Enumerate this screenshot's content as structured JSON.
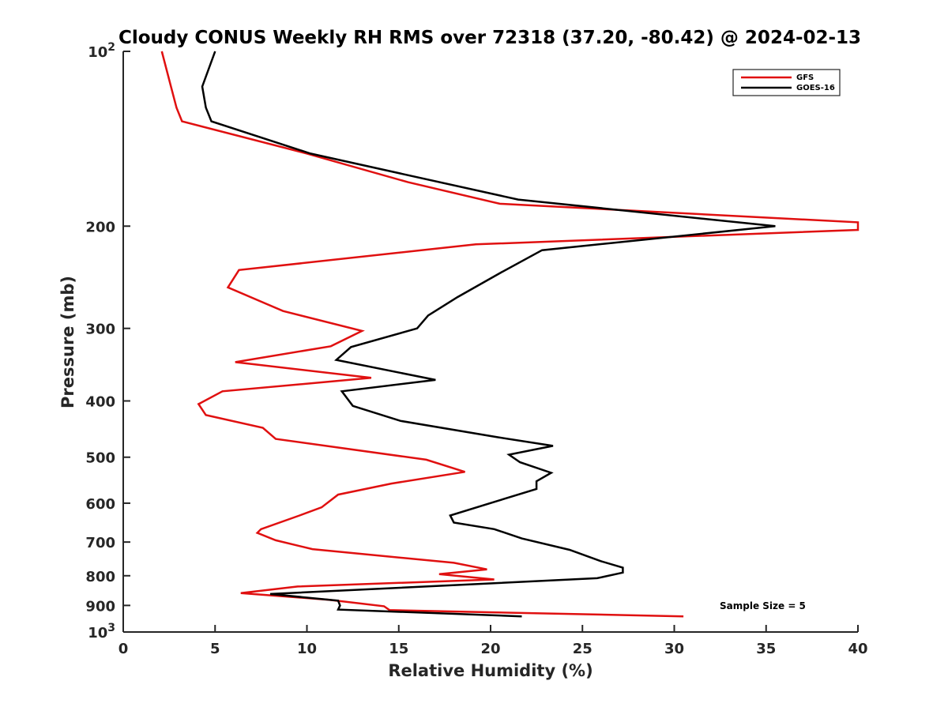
{
  "chart_data": {
    "type": "line",
    "title": "Cloudy CONUS Weekly RH RMS over 72318 (37.20, -80.42) @ 2024-02-13",
    "xlabel": "Relative Humidity (%)",
    "ylabel": "Pressure (mb)",
    "xlim": [
      0,
      40
    ],
    "ylim": [
      100,
      1000
    ],
    "yscale": "log",
    "y_reversed": true,
    "x_ticks": [
      "0",
      "5",
      "10",
      "15",
      "20",
      "25",
      "30",
      "35",
      "40"
    ],
    "y_ticks": [
      {
        "value": 100,
        "base": "10",
        "exp": "2"
      },
      {
        "value": 200,
        "label": "200"
      },
      {
        "value": 300,
        "label": "300"
      },
      {
        "value": 400,
        "label": "400"
      },
      {
        "value": 500,
        "label": "500"
      },
      {
        "value": 600,
        "label": "600"
      },
      {
        "value": 700,
        "label": "700"
      },
      {
        "value": 800,
        "label": "800"
      },
      {
        "value": 900,
        "label": "900"
      },
      {
        "value": 1000,
        "base": "10",
        "exp": "3"
      }
    ],
    "legend_position": "top-right",
    "annotation": "Sample Size = 5",
    "series": [
      {
        "name": "GFS",
        "color": "#e01010",
        "points": [
          [
            2.1,
            100
          ],
          [
            2.6,
            115
          ],
          [
            2.9,
            125
          ],
          [
            3.2,
            132
          ],
          [
            10.0,
            150
          ],
          [
            15.5,
            168
          ],
          [
            20.5,
            183
          ],
          [
            40.0,
            197
          ],
          [
            40.0,
            203
          ],
          [
            19.2,
            215
          ],
          [
            6.3,
            238
          ],
          [
            5.7,
            255
          ],
          [
            8.7,
            280
          ],
          [
            13.0,
            303
          ],
          [
            11.3,
            322
          ],
          [
            6.1,
            343
          ],
          [
            13.5,
            365
          ],
          [
            5.4,
            385
          ],
          [
            4.1,
            405
          ],
          [
            4.5,
            423
          ],
          [
            7.6,
            445
          ],
          [
            8.3,
            465
          ],
          [
            16.5,
            505
          ],
          [
            18.6,
            530
          ],
          [
            14.6,
            555
          ],
          [
            11.7,
            580
          ],
          [
            10.8,
            610
          ],
          [
            9.6,
            630
          ],
          [
            7.5,
            665
          ],
          [
            7.3,
            675
          ],
          [
            8.3,
            695
          ],
          [
            10.3,
            720
          ],
          [
            18.0,
            760
          ],
          [
            19.8,
            780
          ],
          [
            17.2,
            795
          ],
          [
            20.2,
            812
          ],
          [
            9.5,
            835
          ],
          [
            6.4,
            857
          ],
          [
            11.2,
            880
          ],
          [
            14.2,
            903
          ],
          [
            14.5,
            917
          ],
          [
            30.5,
            940
          ]
        ]
      },
      {
        "name": "GOES-16",
        "color": "#000000",
        "points": [
          [
            5.0,
            100
          ],
          [
            4.3,
            115
          ],
          [
            4.5,
            125
          ],
          [
            4.8,
            132
          ],
          [
            10.2,
            150
          ],
          [
            21.5,
            180
          ],
          [
            35.5,
            200
          ],
          [
            22.8,
            220
          ],
          [
            20.6,
            240
          ],
          [
            18.2,
            265
          ],
          [
            16.6,
            285
          ],
          [
            16.0,
            300
          ],
          [
            12.4,
            323
          ],
          [
            11.6,
            340
          ],
          [
            17.0,
            368
          ],
          [
            11.9,
            385
          ],
          [
            12.5,
            408
          ],
          [
            15.1,
            433
          ],
          [
            20.4,
            462
          ],
          [
            23.4,
            478
          ],
          [
            21.0,
            495
          ],
          [
            21.6,
            510
          ],
          [
            23.3,
            532
          ],
          [
            22.5,
            550
          ],
          [
            22.5,
            567
          ],
          [
            17.8,
            630
          ],
          [
            18.0,
            648
          ],
          [
            20.2,
            665
          ],
          [
            21.7,
            690
          ],
          [
            24.3,
            722
          ],
          [
            26.0,
            755
          ],
          [
            27.2,
            775
          ],
          [
            27.2,
            790
          ],
          [
            25.8,
            808
          ],
          [
            8.0,
            860
          ],
          [
            11.7,
            883
          ],
          [
            11.8,
            900
          ],
          [
            11.7,
            915
          ],
          [
            21.7,
            940
          ]
        ]
      }
    ]
  }
}
